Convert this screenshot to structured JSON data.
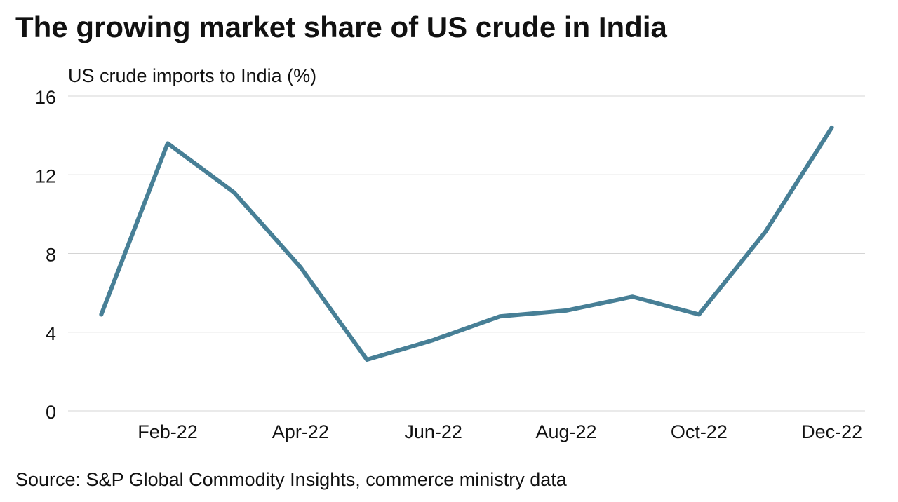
{
  "chart_data": {
    "type": "line",
    "title": "The growing market share of US crude in India",
    "y_label": "US crude imports to India (%)",
    "source": "Source: S&P Global Commodity Insights, commerce ministry data",
    "categories": [
      null,
      "Feb-22",
      null,
      "Apr-22",
      null,
      "Jun-22",
      null,
      "Aug-22",
      null,
      "Oct-22",
      null,
      "Dec-22"
    ],
    "series": [
      {
        "name": "US crude imports to India",
        "color": "#477f96",
        "values": [
          4.9,
          13.6,
          11.1,
          7.3,
          2.6,
          3.6,
          4.8,
          5.1,
          5.8,
          4.9,
          9.1,
          14.4
        ]
      }
    ],
    "ylim": [
      0,
      16
    ],
    "yticks": [
      0,
      4,
      8,
      12,
      16
    ],
    "grid": true
  }
}
